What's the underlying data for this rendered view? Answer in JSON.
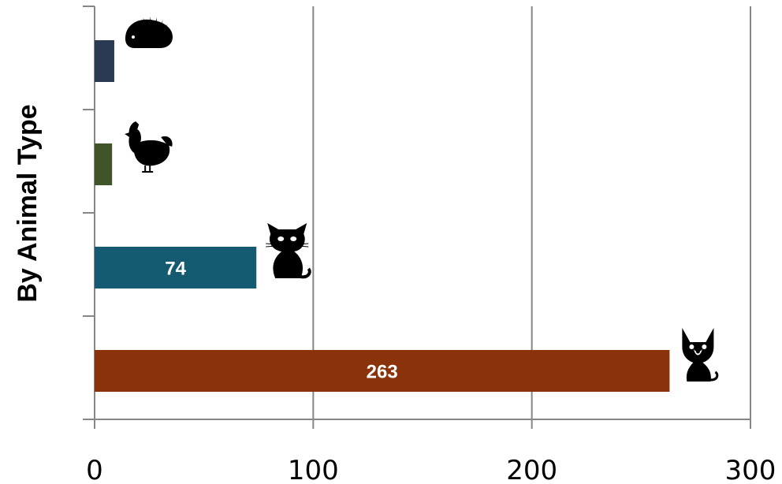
{
  "chart_data": {
    "type": "bar",
    "orientation": "horizontal",
    "title": "",
    "xlabel": "",
    "ylabel": "By Animal Type",
    "xlim": [
      0,
      300
    ],
    "x_ticks": [
      0,
      100,
      200,
      300
    ],
    "x_tick_labels": [
      "0",
      "100",
      "200",
      "300"
    ],
    "grid": true,
    "legend": "none",
    "categories_top_to_bottom": [
      {
        "icon": "hedgehog-icon",
        "value": 9,
        "data_label": "",
        "color": "#2a3a52"
      },
      {
        "icon": "rooster-icon",
        "value": 8,
        "data_label": "",
        "color": "#3f5428"
      },
      {
        "icon": "cat-icon",
        "value": 74,
        "data_label": "74",
        "color": "#145a70"
      },
      {
        "icon": "dog-icon",
        "value": 263,
        "data_label": "263",
        "color": "#8a3209"
      }
    ]
  }
}
